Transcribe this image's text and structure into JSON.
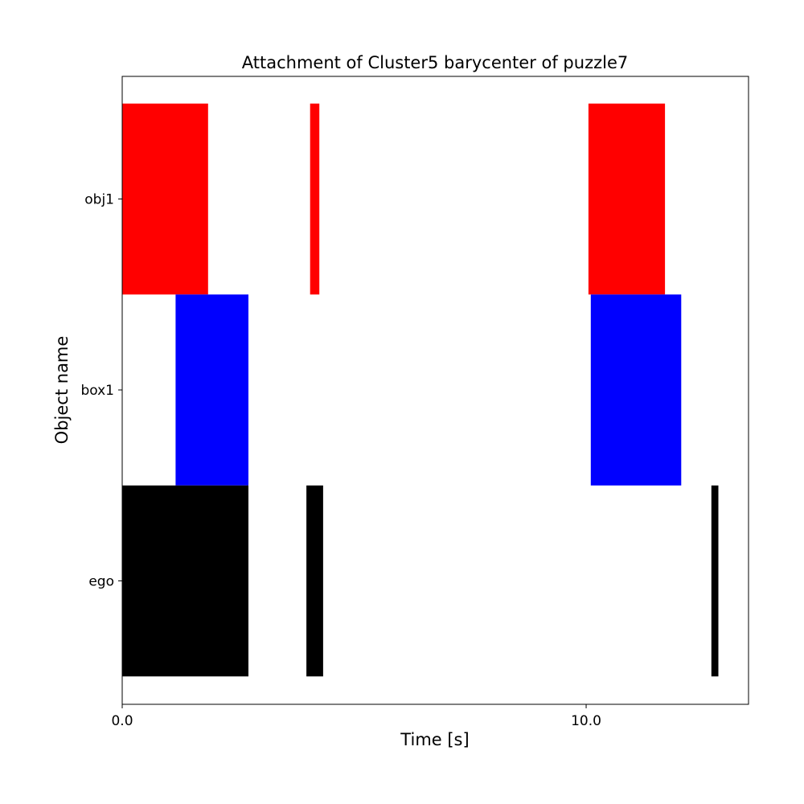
{
  "chart_data": {
    "type": "gantt",
    "title": "Attachment of Cluster5 barycenter of puzzle7",
    "xlabel": "Time [s]",
    "ylabel": "Object name",
    "xlim": [
      0,
      13.5
    ],
    "x_ticks": [
      0,
      10
    ],
    "x_tick_labels": [
      "0.0",
      "10.0"
    ],
    "grid": false,
    "rows": [
      "ego",
      "box1",
      "obj1"
    ],
    "series": [
      {
        "name": "obj1",
        "color": "#ff0000",
        "intervals": [
          [
            0,
            1.85
          ],
          [
            4.05,
            4.25
          ],
          [
            10.05,
            11.7
          ]
        ]
      },
      {
        "name": "box1",
        "color": "#0000ff",
        "intervals": [
          [
            1.15,
            2.72
          ],
          [
            10.1,
            12.05
          ]
        ]
      },
      {
        "name": "ego",
        "color": "#000000",
        "intervals": [
          [
            0,
            2.72
          ],
          [
            3.97,
            4.33
          ],
          [
            12.7,
            12.85
          ]
        ]
      }
    ]
  }
}
